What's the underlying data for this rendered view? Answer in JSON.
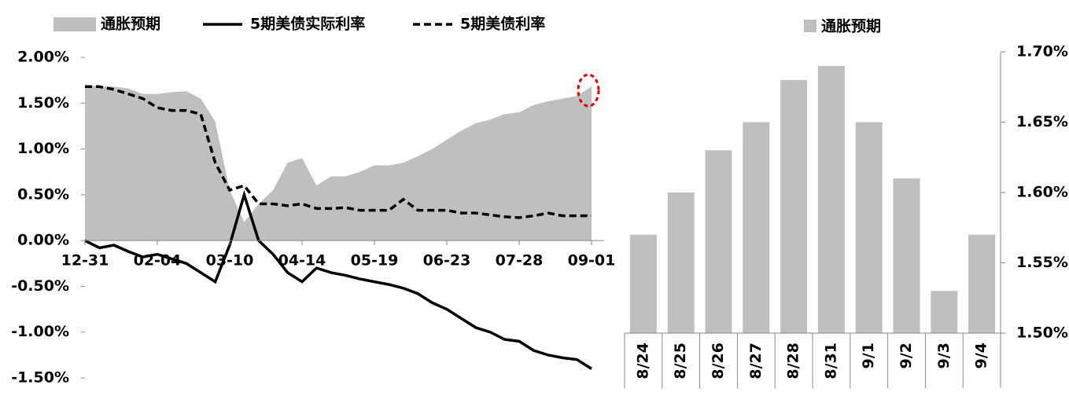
{
  "chart_data": [
    {
      "type": "line",
      "categories": [
        "12-31",
        null,
        null,
        null,
        null,
        "02-04",
        null,
        null,
        null,
        null,
        "03-10",
        null,
        null,
        null,
        null,
        "04-14",
        null,
        null,
        null,
        null,
        "05-19",
        null,
        null,
        null,
        null,
        "06-23",
        null,
        null,
        null,
        null,
        "07-28",
        null,
        null,
        null,
        null,
        "09-01"
      ],
      "series": [
        {
          "name": "通胀预期",
          "style": "area",
          "color": "#bfbfbf",
          "values": [
            1.7,
            1.68,
            1.68,
            1.66,
            1.6,
            1.6,
            1.62,
            1.63,
            1.55,
            1.3,
            0.55,
            0.2,
            0.4,
            0.55,
            0.85,
            0.9,
            0.6,
            0.7,
            0.7,
            0.75,
            0.82,
            0.82,
            0.85,
            0.92,
            1.0,
            1.1,
            1.2,
            1.28,
            1.32,
            1.38,
            1.4,
            1.48,
            1.52,
            1.55,
            1.58,
            1.68
          ]
        },
        {
          "name": "5期美债实际利率",
          "style": "solid",
          "color": "#000000",
          "values": [
            0.0,
            -0.08,
            -0.05,
            -0.12,
            -0.18,
            -0.15,
            -0.2,
            -0.25,
            -0.35,
            -0.45,
            -0.05,
            0.5,
            0.0,
            -0.15,
            -0.35,
            -0.45,
            -0.3,
            -0.35,
            -0.38,
            -0.42,
            -0.45,
            -0.48,
            -0.52,
            -0.58,
            -0.68,
            -0.75,
            -0.85,
            -0.95,
            -1.0,
            -1.08,
            -1.1,
            -1.2,
            -1.25,
            -1.28,
            -1.3,
            -1.4
          ]
        },
        {
          "name": "5期美债利率",
          "style": "dashed",
          "color": "#000000",
          "values": [
            1.68,
            1.68,
            1.65,
            1.6,
            1.55,
            1.45,
            1.42,
            1.42,
            1.38,
            0.85,
            0.55,
            0.6,
            0.4,
            0.4,
            0.38,
            0.4,
            0.35,
            0.35,
            0.36,
            0.33,
            0.33,
            0.33,
            0.45,
            0.33,
            0.33,
            0.33,
            0.3,
            0.3,
            0.28,
            0.26,
            0.25,
            0.27,
            0.3,
            0.27,
            0.27,
            0.27
          ]
        }
      ],
      "ylim": [
        -1.5,
        2.0
      ],
      "yticks": [
        {
          "value": 2.0,
          "label": "2.00%"
        },
        {
          "value": 1.5,
          "label": "1.50%"
        },
        {
          "value": 1.0,
          "label": "1.00%"
        },
        {
          "value": 0.5,
          "label": "0.50%"
        },
        {
          "value": 0.0,
          "label": "0.00%"
        },
        {
          "value": -0.5,
          "label": "-0.50%"
        },
        {
          "value": -1.0,
          "label": "-1.00%"
        },
        {
          "value": -1.5,
          "label": "-1.50%"
        }
      ]
    },
    {
      "type": "bar",
      "categories": [
        "8/24",
        "8/25",
        "8/26",
        "8/27",
        "8/28",
        "8/31",
        "9/1",
        "9/2",
        "9/3",
        "9/4"
      ],
      "series": [
        {
          "name": "通胀预期",
          "color": "#bfbfbf",
          "values": [
            1.57,
            1.6,
            1.63,
            1.65,
            1.68,
            1.69,
            1.65,
            1.61,
            1.53,
            1.57
          ]
        }
      ],
      "ylim": [
        1.5,
        1.7
      ],
      "yticks": [
        {
          "value": 1.7,
          "label": "1.70%"
        },
        {
          "value": 1.65,
          "label": "1.65%"
        },
        {
          "value": 1.6,
          "label": "1.60%"
        },
        {
          "value": 1.55,
          "label": "1.55%"
        },
        {
          "value": 1.5,
          "label": "1.50%"
        }
      ]
    }
  ]
}
